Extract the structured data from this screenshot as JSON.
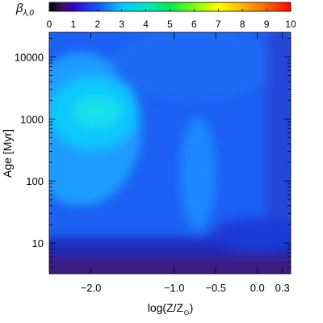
{
  "chart_data": {
    "type": "heatmap",
    "colorbar": {
      "label_symbol": "β",
      "label_subscript": "λ,0",
      "ticks": [
        "0",
        "1",
        "2",
        "3",
        "4",
        "5",
        "6",
        "7",
        "8",
        "9",
        "10"
      ],
      "range": [
        0,
        10
      ]
    },
    "xlabel_main": "log(Z/Z",
    "xlabel_sub": "⊙",
    "xlabel_close": ")",
    "xlim": [
      -2.5,
      0.4
    ],
    "xticks": [
      {
        "value": -2.0,
        "label": "−2.0"
      },
      {
        "value": -1.0,
        "label": "−1.0"
      },
      {
        "value": -0.5,
        "label": "−0.5"
      },
      {
        "value": 0.0,
        "label": "0.0"
      },
      {
        "value": 0.3,
        "label": "0.3"
      }
    ],
    "ylabel_main": "Age",
    "ylabel_unit": "[Myr]",
    "ylog": true,
    "ylim": [
      3.2,
      25000
    ],
    "yticks": [
      {
        "value": 10,
        "label": "10"
      },
      {
        "value": 100,
        "label": "100"
      },
      {
        "value": 1000,
        "label": "1000"
      },
      {
        "value": 10000,
        "label": "10000"
      }
    ],
    "colormap": [
      [
        0.0,
        "#000000"
      ],
      [
        0.5,
        "#3c0e5a"
      ],
      [
        1.0,
        "#3a00c8"
      ],
      [
        2.0,
        "#1456ff"
      ],
      [
        3.0,
        "#00c8ff"
      ],
      [
        4.0,
        "#00e6c8"
      ],
      [
        5.0,
        "#00ee50"
      ],
      [
        6.0,
        "#78ff00"
      ],
      [
        7.0,
        "#ffff00"
      ],
      [
        8.0,
        "#ffb400"
      ],
      [
        9.0,
        "#ff6400"
      ],
      [
        10.0,
        "#ff0000"
      ]
    ]
  }
}
